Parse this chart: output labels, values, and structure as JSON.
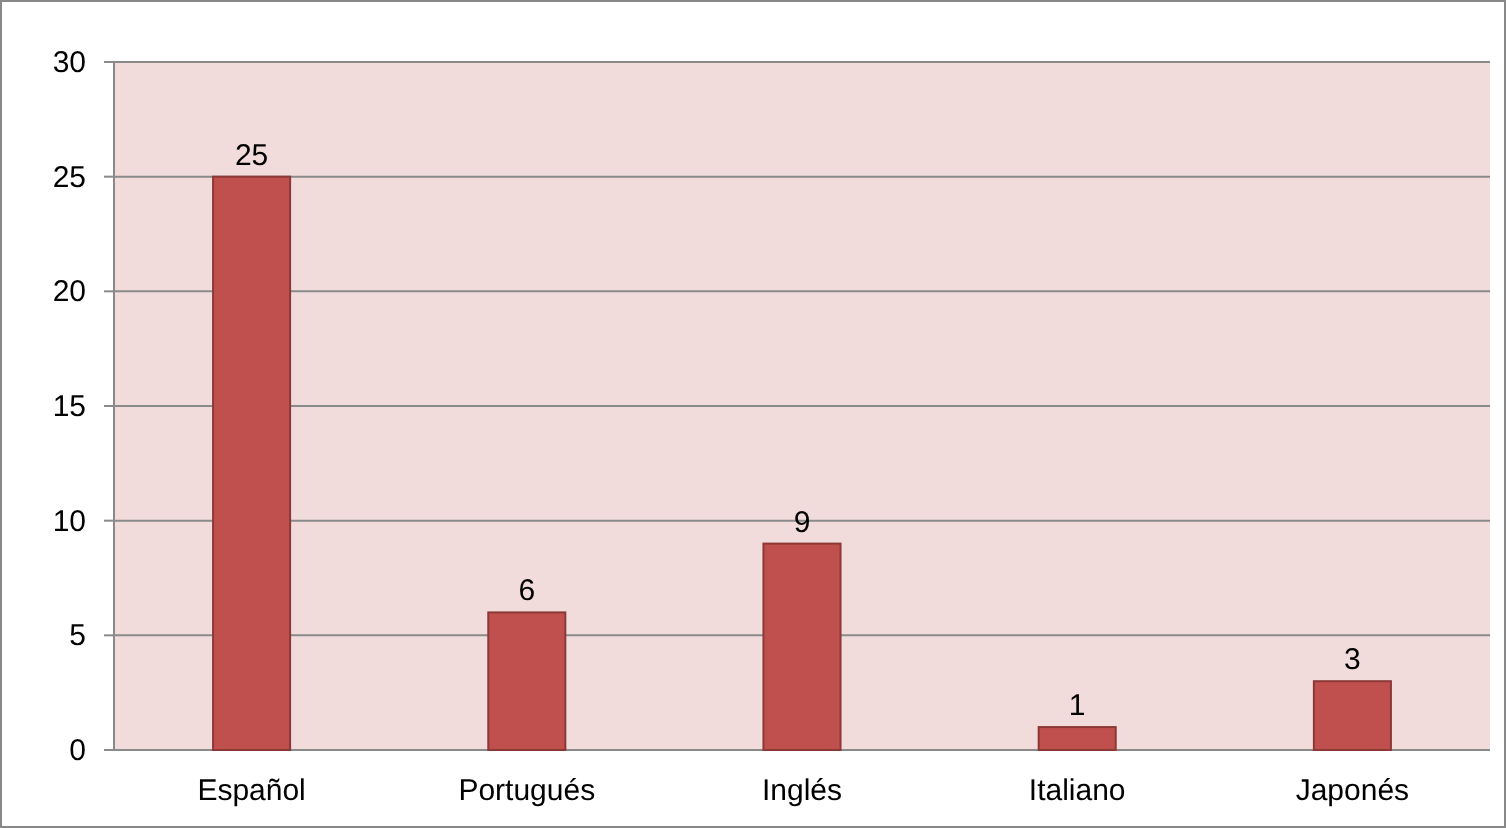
{
  "chart_data": {
    "type": "bar",
    "categories": [
      "Español",
      "Portugués",
      "Inglés",
      "Italiano",
      "Japonés"
    ],
    "values": [
      25,
      6,
      9,
      1,
      3
    ],
    "color": "#c0504d",
    "ylim": [
      0,
      30
    ],
    "yticks": [
      0,
      5,
      10,
      15,
      20,
      25,
      30
    ],
    "grid": "y",
    "data_labels": true
  }
}
